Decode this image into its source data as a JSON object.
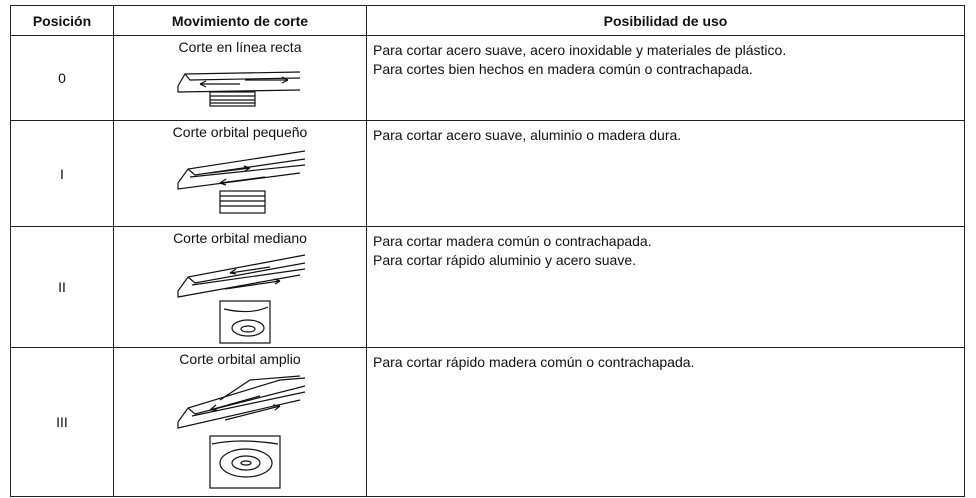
{
  "table": {
    "header": [
      "Posición",
      "Movimiento de corte",
      "Posibilidad de uso"
    ],
    "rows": [
      {
        "position": "0",
        "movement": "Corte en línea recta",
        "uses": [
          "Para cortar acero suave, acero inoxidable y materiales de plástico.",
          "Para cortes bien hechos en madera común o contrachapada."
        ]
      },
      {
        "position": "I",
        "movement": "Corte orbital pequeño",
        "uses": [
          "Para cortar acero suave, aluminio o madera dura."
        ]
      },
      {
        "position": "II",
        "movement": "Corte orbital mediano",
        "uses": [
          "Para cortar madera común o contrachapada.",
          "Para cortar rápido aluminio y acero suave."
        ]
      },
      {
        "position": "III",
        "movement": "Corte orbital amplio",
        "uses": [
          "Para cortar rápido madera común o contrachapada."
        ]
      }
    ]
  }
}
